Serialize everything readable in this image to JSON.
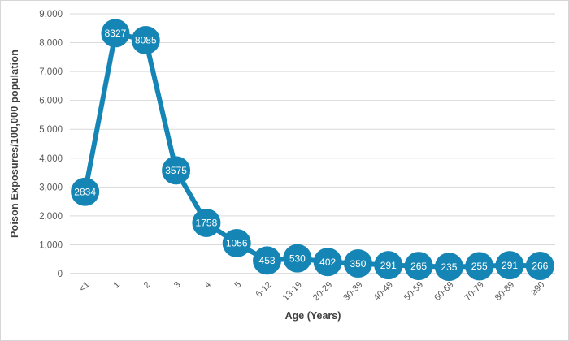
{
  "chart_data": {
    "type": "line",
    "title": "",
    "xlabel": "Age (Years)",
    "ylabel": "Poison Exposures/100,000 population",
    "categories": [
      "<1",
      "1",
      "2",
      "3",
      "4",
      "5",
      "6-12",
      "13-19",
      "20-29",
      "30-39",
      "40-49",
      "50-59",
      "60-69",
      "70-79",
      "80-89",
      "≥90"
    ],
    "values": [
      2834,
      8327,
      8085,
      3575,
      1758,
      1056,
      453,
      530,
      402,
      350,
      291,
      265,
      235,
      255,
      291,
      266
    ],
    "ylim": [
      0,
      9000
    ],
    "ytick_step": 1000,
    "ytick_labels": [
      "0",
      "1,000",
      "2,000",
      "3,000",
      "4,000",
      "5,000",
      "6,000",
      "7,000",
      "8,000",
      "9,000"
    ],
    "grid": true,
    "legend": false,
    "marker": "labeled-circle",
    "colors": {
      "series": "#1585b5",
      "marker_label": "#ffffff",
      "gridline": "#d9d9d9",
      "axis_line": "#bfbfbf",
      "tick_text": "#595959",
      "title_text": "#404040",
      "chart_border": "#d6d6d6",
      "background": "#ffffff"
    }
  }
}
